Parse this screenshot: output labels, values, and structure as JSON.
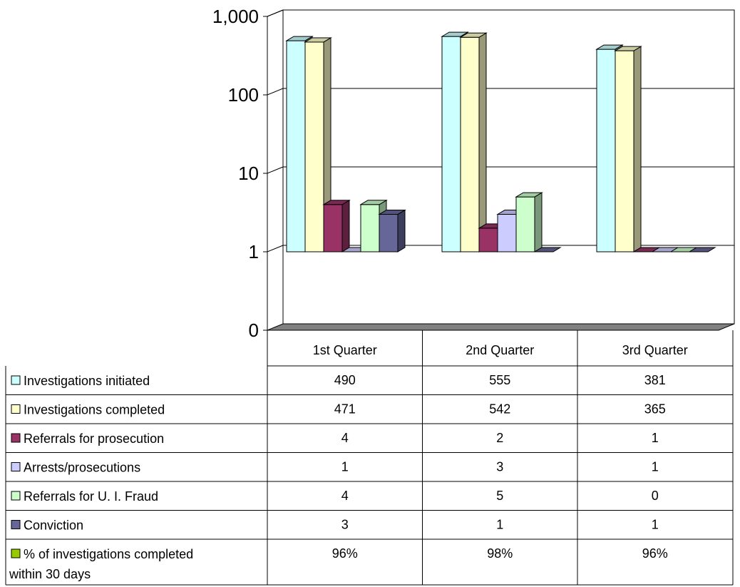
{
  "chart_data": {
    "type": "bar",
    "y_scale": "log",
    "y_ticks": [
      "1,000",
      "100",
      "10",
      "1",
      "0"
    ],
    "categories": [
      "1st Quarter",
      "2nd Quarter",
      "3rd Quarter"
    ],
    "series": [
      {
        "name": "Investigations initiated",
        "color": "#CCFFFF",
        "values": [
          490,
          555,
          381
        ],
        "labels": [
          "490",
          "555",
          "381"
        ]
      },
      {
        "name": "Investigations completed",
        "color": "#FFFFCC",
        "values": [
          471,
          542,
          365
        ],
        "labels": [
          "471",
          "542",
          "365"
        ]
      },
      {
        "name": "Referrals for prosecution",
        "color": "#993366",
        "values": [
          4,
          2,
          1
        ],
        "labels": [
          "4",
          "2",
          "1"
        ]
      },
      {
        "name": "Arrests/prosecutions",
        "color": "#CCCCFF",
        "values": [
          1,
          3,
          1
        ],
        "labels": [
          "1",
          "3",
          "1"
        ]
      },
      {
        "name": "Referrals for U. I. Fraud",
        "color": "#CCFFCC",
        "values": [
          4,
          5,
          0
        ],
        "labels": [
          "4",
          "5",
          "0"
        ]
      },
      {
        "name": "Conviction",
        "color": "#666699",
        "values": [
          3,
          1,
          1
        ],
        "labels": [
          "3",
          "1",
          "1"
        ]
      },
      {
        "name": "% of investigations completed within 30 days",
        "color": "#99CC00",
        "values": [
          96,
          98,
          96
        ],
        "labels": [
          "96%",
          "98%",
          "96%"
        ],
        "drawn": false
      }
    ]
  }
}
